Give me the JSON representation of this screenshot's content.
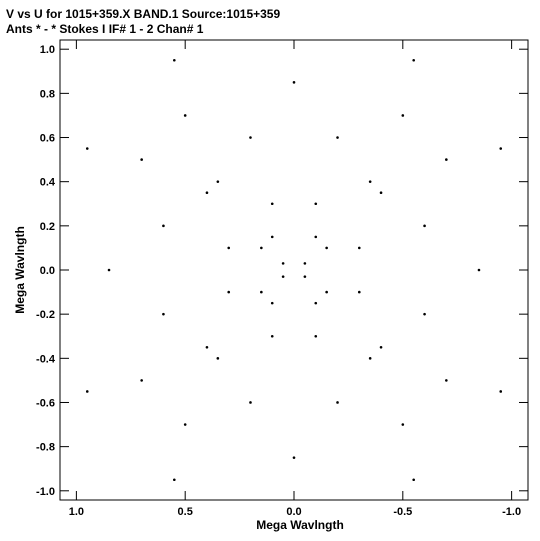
{
  "header": {
    "line1": "V vs U for 1015+359.X BAND.1   Source:1015+359",
    "line2": "Ants * - *     Stokes I  IF# 1 - 2  Chan# 1"
  },
  "chart_data": {
    "type": "scatter",
    "title": "V vs U for 1015+359.X BAND.1   Source:1015+359",
    "subtitle": "Ants * - *     Stokes I  IF# 1 - 2  Chan# 1",
    "xlabel": "Mega Wavlngth",
    "ylabel": "Mega Wavlngth",
    "xlim": [
      1.0,
      -1.0
    ],
    "ylim": [
      -1.0,
      1.0
    ],
    "x_reversed": true,
    "grid": false,
    "legend": "none",
    "xticks": [
      1.0,
      0.5,
      0.0,
      -0.5,
      -1.0
    ],
    "xtick_labels": [
      "1.0",
      "0.5",
      "0.0",
      "-0.5",
      "-1.0"
    ],
    "yticks": [
      1.0,
      0.8,
      0.6,
      0.4,
      0.2,
      0.0,
      -0.2,
      -0.4,
      -0.6,
      -0.8,
      -1.0
    ],
    "ytick_labels": [
      "1.0",
      "0.8",
      "0.6",
      "0.4",
      "0.2",
      "0.0",
      "-0.2",
      "-0.4",
      "-0.6",
      "-0.8",
      "-1.0"
    ],
    "marker_color": "#000000",
    "points": [
      [
        0.95,
        0.55
      ],
      [
        0.55,
        0.95
      ],
      [
        -0.55,
        0.95
      ],
      [
        -0.95,
        0.55
      ],
      [
        0.95,
        -0.55
      ],
      [
        0.55,
        -0.95
      ],
      [
        -0.55,
        -0.95
      ],
      [
        -0.95,
        -0.55
      ],
      [
        0.85,
        0.0
      ],
      [
        0.0,
        0.85
      ],
      [
        -0.85,
        0.0
      ],
      [
        0.0,
        -0.85
      ],
      [
        0.7,
        0.5
      ],
      [
        0.5,
        0.7
      ],
      [
        -0.5,
        0.7
      ],
      [
        -0.7,
        0.5
      ],
      [
        0.7,
        -0.5
      ],
      [
        0.5,
        -0.7
      ],
      [
        -0.5,
        -0.7
      ],
      [
        -0.7,
        -0.5
      ],
      [
        0.6,
        0.2
      ],
      [
        0.2,
        0.6
      ],
      [
        -0.2,
        0.6
      ],
      [
        -0.6,
        0.2
      ],
      [
        0.6,
        -0.2
      ],
      [
        0.2,
        -0.6
      ],
      [
        -0.2,
        -0.6
      ],
      [
        -0.6,
        -0.2
      ],
      [
        0.4,
        0.35
      ],
      [
        0.35,
        0.4
      ],
      [
        -0.35,
        0.4
      ],
      [
        -0.4,
        0.35
      ],
      [
        0.4,
        -0.35
      ],
      [
        0.35,
        -0.4
      ],
      [
        -0.35,
        -0.4
      ],
      [
        -0.4,
        -0.35
      ],
      [
        0.3,
        0.1
      ],
      [
        0.1,
        0.3
      ],
      [
        -0.1,
        0.3
      ],
      [
        -0.3,
        0.1
      ],
      [
        0.3,
        -0.1
      ],
      [
        0.1,
        -0.3
      ],
      [
        -0.1,
        -0.3
      ],
      [
        -0.3,
        -0.1
      ],
      [
        0.15,
        0.1
      ],
      [
        0.1,
        0.15
      ],
      [
        -0.1,
        0.15
      ],
      [
        -0.15,
        0.1
      ],
      [
        0.15,
        -0.1
      ],
      [
        0.1,
        -0.15
      ],
      [
        -0.1,
        -0.15
      ],
      [
        -0.15,
        -0.1
      ],
      [
        0.05,
        0.03
      ],
      [
        -0.05,
        0.03
      ],
      [
        0.05,
        -0.03
      ],
      [
        -0.05,
        -0.03
      ]
    ]
  }
}
